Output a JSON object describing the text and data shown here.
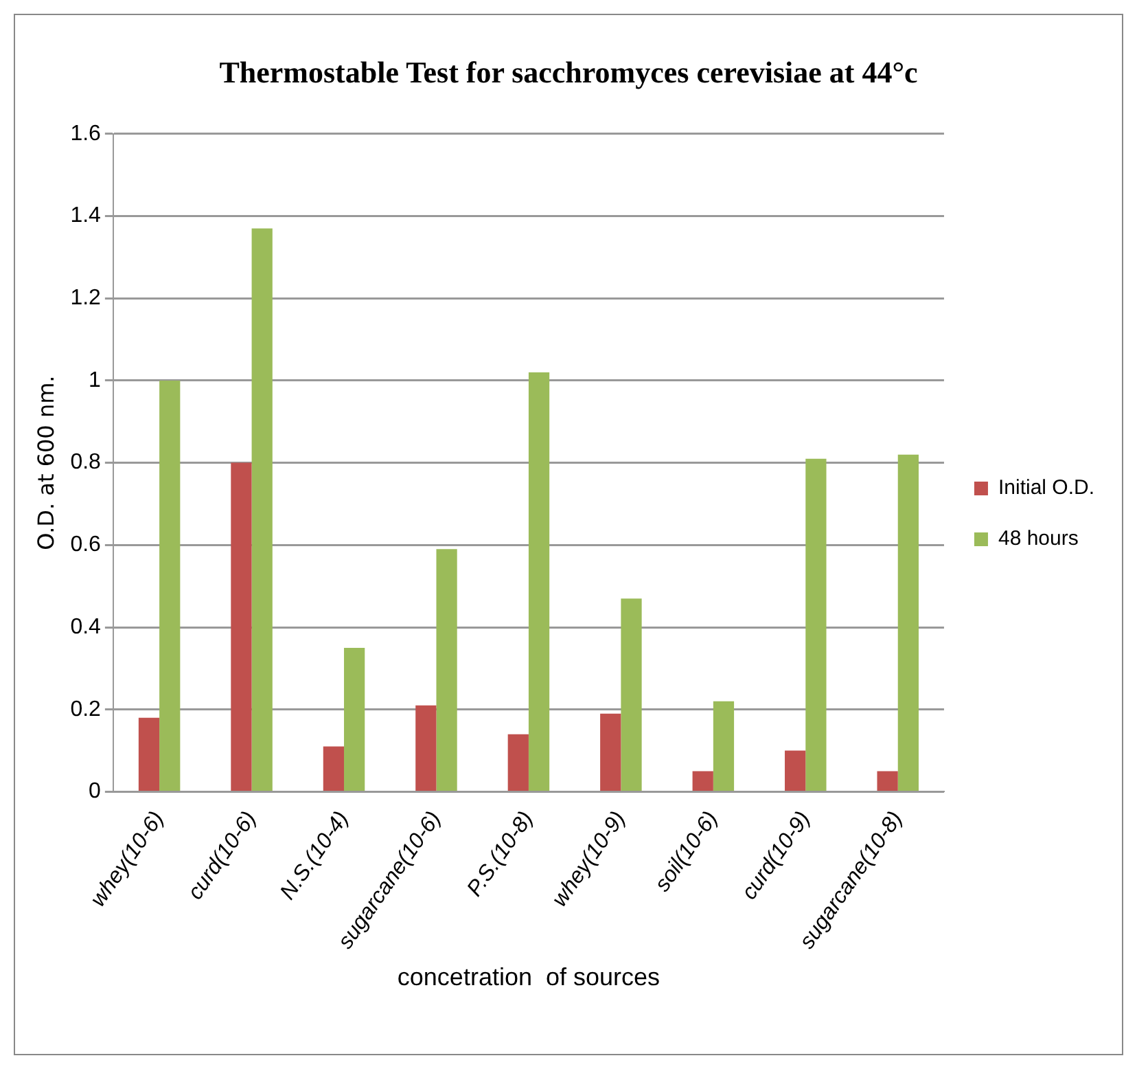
{
  "chart_data": {
    "type": "bar",
    "title": "Thermostable Test for sacchromyces cerevisiae at 44°c",
    "xlabel": "concetration  of sources",
    "ylabel": "O.D. at 600 nm.",
    "categories": [
      "whey(10-6)",
      "curd(10-6)",
      "N.S.(10-4)",
      "sugarcane(10-6)",
      "P.S.(10-8)",
      "whey(10-9)",
      "soil(10-6)",
      "curd(10-9)",
      "sugarcane(10-8)"
    ],
    "series": [
      {
        "name": "Initial O.D.",
        "color": "#c0504d",
        "values": [
          0.18,
          0.8,
          0.11,
          0.21,
          0.14,
          0.19,
          0.05,
          0.1,
          0.05
        ]
      },
      {
        "name": "48 hours",
        "color": "#9bbb59",
        "values": [
          1.0,
          1.37,
          0.35,
          0.59,
          1.02,
          0.47,
          0.22,
          0.81,
          0.82
        ]
      }
    ],
    "ylim": [
      0,
      1.6
    ],
    "yticks": [
      0,
      0.2,
      0.4,
      0.6,
      0.8,
      1,
      1.2,
      1.4,
      1.6
    ],
    "grid": "y",
    "legend": "right"
  }
}
